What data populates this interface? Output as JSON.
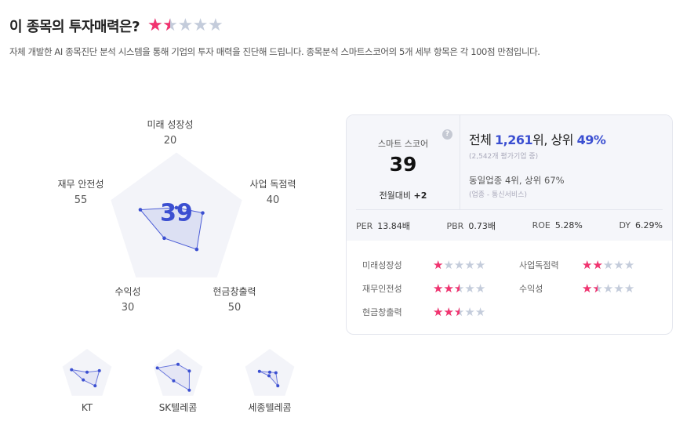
{
  "header": {
    "title": "이 종목의 투자매력은?",
    "rating": 1.5,
    "description": "자체 개발한 AI 종목진단 분석 시스템을 통해 기업의 투자 매력을 진단해 드립니다. 종목분석 스마트스코어의 5개 세부 항목은 각 100점 만점입니다."
  },
  "chart_data": {
    "type": "radar",
    "center_label": "39",
    "max": 100,
    "axes": [
      "미래 성장성",
      "사업 독점력",
      "현금창출력",
      "수익성",
      "재무 안전성"
    ],
    "values": [
      20,
      40,
      50,
      30,
      55
    ],
    "value_labels": [
      "20",
      "40",
      "50",
      "30",
      "55"
    ],
    "peers": [
      {
        "name": "KT",
        "values": [
          10,
          50,
          53,
          25,
          63
        ]
      },
      {
        "name": "SK텔레콤",
        "values": [
          40,
          46,
          74,
          29,
          84
        ]
      },
      {
        "name": "세종텔레콤",
        "values": [
          10,
          25,
          53,
          5,
          42
        ]
      }
    ]
  },
  "card": {
    "score_label": "스마트 스코어",
    "score": "39",
    "change_label": "전월대비",
    "change": "+2",
    "help_icon": "question-circle-icon",
    "rank_prefix": "전체 ",
    "rank": "1,261",
    "rank_mid": "위, 상위 ",
    "rank_pct": "49%",
    "rank_sub": "(2,542개 평가기업 중)",
    "industry": "동일업종 4위, 상위 67%",
    "industry_sub": "(업종 - 통신서비스)",
    "metrics": [
      {
        "k": "PER",
        "v": "13.84배"
      },
      {
        "k": "PBR",
        "v": "0.73배"
      },
      {
        "k": "ROE",
        "v": "5.28%"
      },
      {
        "k": "DY",
        "v": "6.29%"
      }
    ],
    "ratings": [
      {
        "label": "미래성장성",
        "stars": 1
      },
      {
        "label": "사업독점력",
        "stars": 2
      },
      {
        "label": "재무인전성",
        "stars": 2.5
      },
      {
        "label": "수익성",
        "stars": 1.5
      },
      {
        "label": "현금창출력",
        "stars": 2.5
      }
    ]
  },
  "colors": {
    "accent": "#3b4fd1",
    "star": "#f2336f",
    "star_empty": "#c4ccdb",
    "radar_bg": "#f3f4f9"
  }
}
